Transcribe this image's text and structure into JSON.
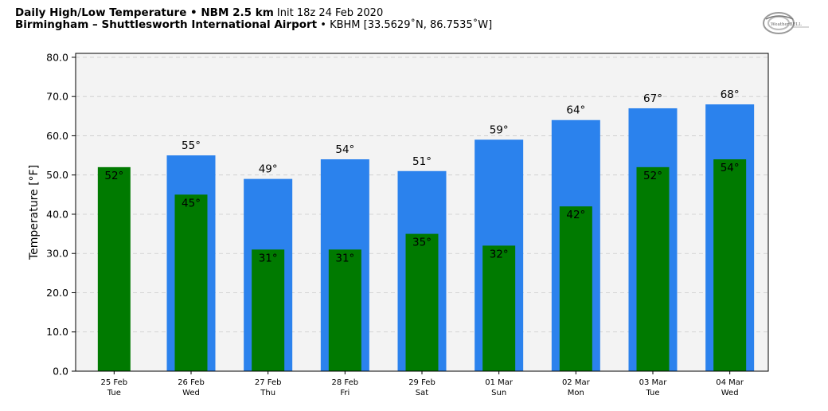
{
  "header": {
    "title_bold": "Daily High/Low Temperature • NBM 2.5 km",
    "title_init": "Init 18z 24 Feb 2020",
    "location_bold": "Birmingham – Shuttlesworth International Airport",
    "location_detail": "• KBHM [33.5629˚N, 86.7535˚W]"
  },
  "logo": {
    "name": "weatherbell-logo",
    "text": "WeatherBELL"
  },
  "colors": {
    "high": "#2b82ed",
    "low": "#007a00",
    "plot_bg": "#f3f3f3"
  },
  "chart_data": {
    "type": "bar",
    "categories": [
      "25 Feb",
      "26 Feb",
      "27 Feb",
      "28 Feb",
      "29 Feb",
      "01 Mar",
      "02 Mar",
      "03 Mar",
      "04 Mar"
    ],
    "weekdays": [
      "Tue",
      "Wed",
      "Thu",
      "Fri",
      "Sat",
      "Sun",
      "Mon",
      "Tue",
      "Wed"
    ],
    "series": [
      {
        "values": [
          null,
          55,
          49,
          54,
          51,
          59,
          64,
          67,
          68
        ],
        "labels": [
          "",
          "55°",
          "49°",
          "54°",
          "51°",
          "59°",
          "64°",
          "67°",
          "68°"
        ]
      },
      {
        "values": [
          52,
          45,
          31,
          31,
          35,
          32,
          42,
          52,
          54
        ],
        "labels": [
          "52°",
          "45°",
          "31°",
          "31°",
          "35°",
          "32°",
          "42°",
          "52°",
          "54°"
        ]
      }
    ],
    "title": "Daily High/Low Temperature • NBM 2.5 km",
    "xlabel": "",
    "ylabel": "Temperature [°F]",
    "ylim": [
      0,
      81
    ],
    "yticks": [
      0,
      10,
      20,
      30,
      40,
      50,
      60,
      70,
      80
    ],
    "ytick_labels": [
      "0.0",
      "10.0",
      "20.0",
      "30.0",
      "40.0",
      "50.0",
      "60.0",
      "70.0",
      "80.0"
    ],
    "grid": true,
    "legend": "none"
  }
}
